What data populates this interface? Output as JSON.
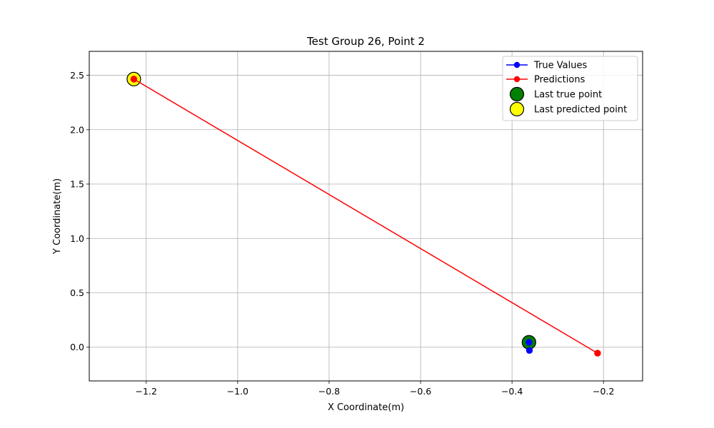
{
  "chart_data": {
    "type": "line",
    "title": "Test Group 26, Point 2",
    "xlabel": "X Coordinate(m)",
    "ylabel": "Y Coordinate(m)",
    "xlim": [
      -1.3245,
      -0.1145
    ],
    "ylim": [
      -0.31,
      2.72
    ],
    "xticks": [
      -1.2,
      -1.0,
      -0.8,
      -0.6,
      -0.4,
      -0.2
    ],
    "xtick_labels": [
      "−1.2",
      "−1.0",
      "−0.8",
      "−0.6",
      "−0.4",
      "−0.2"
    ],
    "yticks": [
      0.0,
      0.5,
      1.0,
      1.5,
      2.0,
      2.5
    ],
    "ytick_labels": [
      "0.0",
      "0.5",
      "1.0",
      "1.5",
      "2.0",
      "2.5"
    ],
    "grid": true,
    "legend_position": "top-right",
    "series": [
      {
        "name": "True Values",
        "kind": "line-marker",
        "color": "#0000ff",
        "x": [
          -0.362,
          -0.363
        ],
        "y": [
          -0.03,
          0.045
        ]
      },
      {
        "name": "Predictions",
        "kind": "line-marker",
        "color": "#ff0000",
        "x": [
          -0.213,
          -1.227
        ],
        "y": [
          -0.055,
          2.465
        ]
      },
      {
        "name": "Last true point",
        "kind": "big-marker",
        "color": "#008000",
        "x": [
          -0.363
        ],
        "y": [
          0.045
        ]
      },
      {
        "name": "Last predicted point",
        "kind": "big-marker",
        "color": "#ffff00",
        "x": [
          -1.227
        ],
        "y": [
          2.465
        ]
      }
    ]
  }
}
